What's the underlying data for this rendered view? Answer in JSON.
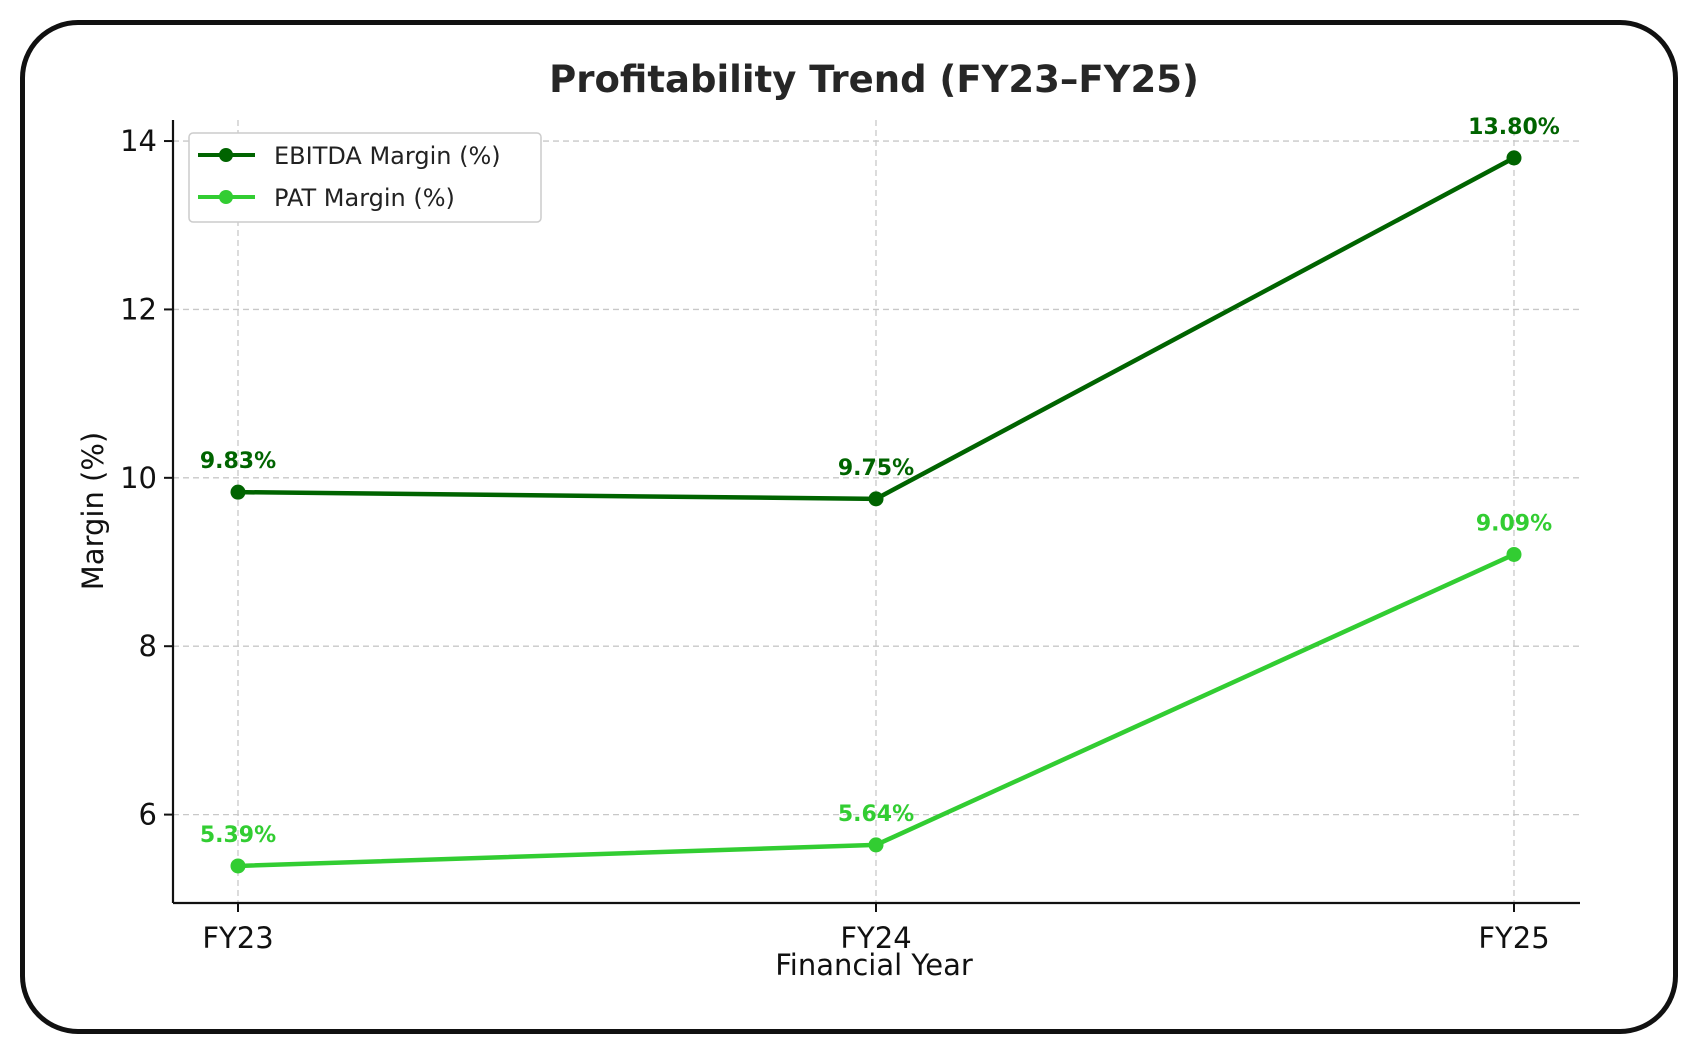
{
  "chart_data": {
    "type": "line",
    "title": "Profitability Trend (FY23–FY25)",
    "xlabel": "Financial Year",
    "ylabel": "Margin (%)",
    "categories": [
      "FY23",
      "FY24",
      "FY25"
    ],
    "ylim": [
      4.95,
      14.25
    ],
    "yticks": [
      6,
      8,
      10,
      12,
      14
    ],
    "grid": true,
    "legend": "top-left",
    "series": [
      {
        "name": "EBITDA Margin (%)",
        "color": "#006400",
        "values": [
          9.83,
          9.75,
          13.8
        ],
        "labels": [
          "9.83%",
          "9.75%",
          "13.80%"
        ]
      },
      {
        "name": "PAT Margin (%)",
        "color": "#32CD32",
        "values": [
          5.39,
          5.64,
          9.09
        ],
        "labels": [
          "5.39%",
          "5.64%",
          "9.09%"
        ]
      }
    ]
  }
}
